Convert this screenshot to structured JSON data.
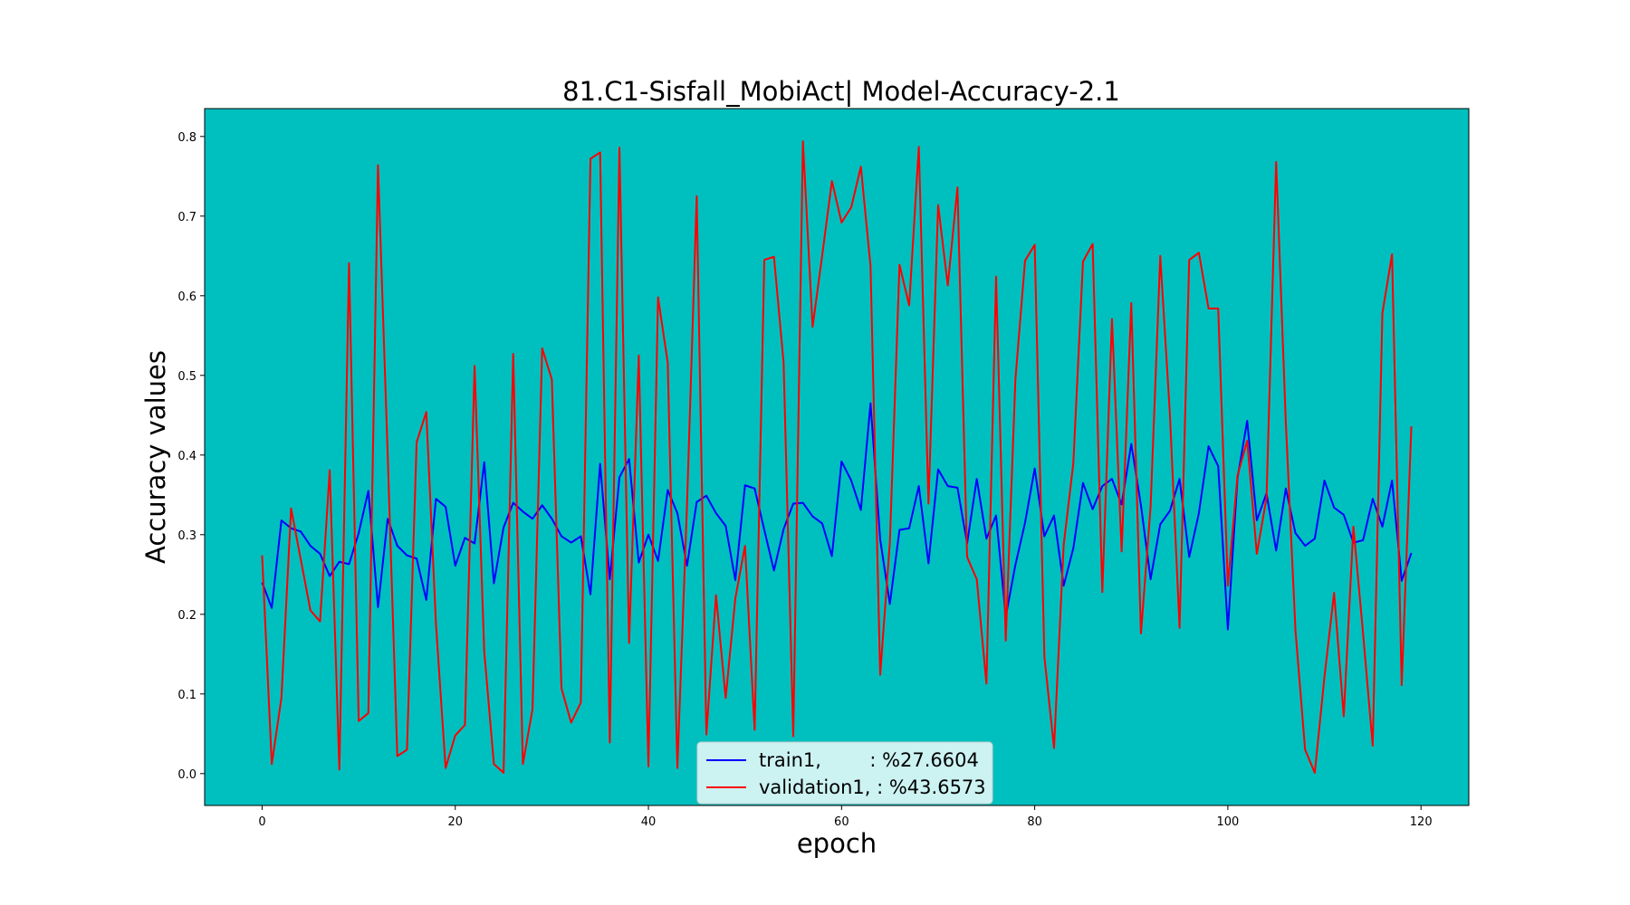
{
  "chart_data": {
    "type": "line",
    "title": "81.C1-Sisfall_MobiAct| Model-Accuracy-2.1",
    "xlabel": "epoch",
    "ylabel": "Accuracy values",
    "xlim": [
      -5.95,
      124.95
    ],
    "ylim": [
      -0.04,
      0.835
    ],
    "xticks": [
      0,
      20,
      40,
      60,
      80,
      100,
      120
    ],
    "yticks": [
      0.0,
      0.1,
      0.2,
      0.3,
      0.4,
      0.5,
      0.6,
      0.7,
      0.8
    ],
    "grid": false,
    "legend_position": "bottom-center",
    "background_color": "#00bfbf",
    "series": [
      {
        "name": "train1,        : %27.6604",
        "color": "#0000ff",
        "x_start": 0,
        "values": [
          0.24,
          0.208,
          0.318,
          0.308,
          0.304,
          0.286,
          0.276,
          0.248,
          0.266,
          0.263,
          0.302,
          0.355,
          0.209,
          0.32,
          0.286,
          0.274,
          0.27,
          0.218,
          0.345,
          0.335,
          0.261,
          0.296,
          0.289,
          0.391,
          0.239,
          0.309,
          0.34,
          0.329,
          0.32,
          0.337,
          0.32,
          0.298,
          0.29,
          0.298,
          0.225,
          0.389,
          0.244,
          0.372,
          0.395,
          0.265,
          0.3,
          0.267,
          0.356,
          0.327,
          0.261,
          0.341,
          0.349,
          0.327,
          0.311,
          0.243,
          0.362,
          0.358,
          0.306,
          0.255,
          0.307,
          0.339,
          0.34,
          0.323,
          0.314,
          0.273,
          0.392,
          0.368,
          0.331,
          0.465,
          0.294,
          0.213,
          0.306,
          0.308,
          0.361,
          0.264,
          0.382,
          0.361,
          0.359,
          0.289,
          0.37,
          0.295,
          0.324,
          0.197,
          0.262,
          0.315,
          0.383,
          0.298,
          0.324,
          0.236,
          0.283,
          0.365,
          0.332,
          0.361,
          0.37,
          0.338,
          0.414,
          0.337,
          0.244,
          0.313,
          0.33,
          0.37,
          0.272,
          0.327,
          0.411,
          0.386,
          0.181,
          0.371,
          0.443,
          0.318,
          0.352,
          0.28,
          0.358,
          0.302,
          0.286,
          0.295,
          0.368,
          0.334,
          0.325,
          0.29,
          0.293,
          0.345,
          0.31,
          0.368,
          0.242,
          0.277
        ]
      },
      {
        "name": "validation1, : %43.6573",
        "color": "#ff0000",
        "x_start": 0,
        "values": [
          0.274,
          0.012,
          0.095,
          0.333,
          0.269,
          0.205,
          0.191,
          0.381,
          0.005,
          0.641,
          0.066,
          0.076,
          0.764,
          0.402,
          0.022,
          0.03,
          0.416,
          0.454,
          0.188,
          0.007,
          0.048,
          0.061,
          0.512,
          0.153,
          0.012,
          0.001,
          0.527,
          0.012,
          0.081,
          0.534,
          0.495,
          0.107,
          0.064,
          0.089,
          0.772,
          0.78,
          0.039,
          0.786,
          0.164,
          0.525,
          0.009,
          0.598,
          0.516,
          0.007,
          0.339,
          0.725,
          0.049,
          0.224,
          0.095,
          0.22,
          0.286,
          0.055,
          0.645,
          0.649,
          0.516,
          0.047,
          0.794,
          0.561,
          0.651,
          0.744,
          0.692,
          0.711,
          0.762,
          0.637,
          0.124,
          0.29,
          0.639,
          0.588,
          0.787,
          0.339,
          0.714,
          0.613,
          0.736,
          0.272,
          0.244,
          0.113,
          0.624,
          0.167,
          0.495,
          0.644,
          0.664,
          0.147,
          0.032,
          0.287,
          0.39,
          0.643,
          0.665,
          0.228,
          0.571,
          0.279,
          0.591,
          0.176,
          0.335,
          0.65,
          0.451,
          0.183,
          0.645,
          0.654,
          0.584,
          0.584,
          0.236,
          0.374,
          0.418,
          0.276,
          0.346,
          0.768,
          0.441,
          0.18,
          0.03,
          0.001,
          0.121,
          0.227,
          0.072,
          0.31,
          0.176,
          0.035,
          0.578,
          0.652,
          0.111,
          0.436
        ]
      }
    ]
  }
}
